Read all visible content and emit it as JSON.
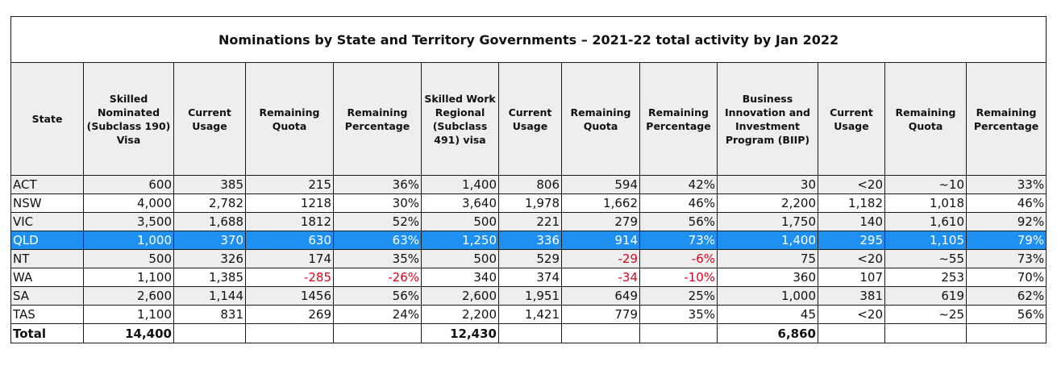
{
  "title": "Nominations by State and Territory Governments – 2021-22 total activity by Jan 2022",
  "headers": [
    "State",
    "Skilled Nominated (Subclass 190) Visa",
    "Current Usage",
    "Remaining Quota",
    "Remaining Percentage",
    "Skilled Work Regional (Subclass 491) visa",
    "Current Usage",
    "Remaining Quota",
    "Remaining Percentage",
    "Business Innovation and Investment Program (BIIP)",
    "Current Usage",
    "Remaining Quota",
    "Remaining Percentage"
  ],
  "rows": [
    [
      "ACT",
      "600",
      "385",
      "215",
      "36%",
      "1,400",
      "806",
      "594",
      "42%",
      "30",
      "<20",
      "~10",
      "33%"
    ],
    [
      "NSW",
      "4,000",
      "2,782",
      "1218",
      "30%",
      "3,640",
      "1,978",
      "1,662",
      "46%",
      "2,200",
      "1,182",
      "1,018",
      "46%"
    ],
    [
      "VIC",
      "3,500",
      "1,688",
      "1812",
      "52%",
      "500",
      "221",
      "279",
      "56%",
      "1,750",
      "140",
      "1,610",
      "92%"
    ],
    [
      "QLD",
      "1,000",
      "370",
      "630",
      "63%",
      "1,250",
      "336",
      "914",
      "73%",
      "1,400",
      "295",
      "1,105",
      "79%"
    ],
    [
      "NT",
      "500",
      "326",
      "174",
      "35%",
      "500",
      "529",
      "-29",
      "-6%",
      "75",
      "<20",
      "~55",
      "73%"
    ],
    [
      "WA",
      "1,100",
      "1,385",
      "-285",
      "-26%",
      "340",
      "374",
      "-34",
      "-10%",
      "360",
      "107",
      "253",
      "70%"
    ],
    [
      "SA",
      "2,600",
      "1,144",
      "1456",
      "56%",
      "2,600",
      "1,951",
      "649",
      "25%",
      "1,000",
      "381",
      "619",
      "62%"
    ],
    [
      "TAS",
      "1,100",
      "831",
      "269",
      "24%",
      "2,200",
      "1,421",
      "779",
      "35%",
      "45",
      "<20",
      "~25",
      "56%"
    ]
  ],
  "highlighted_row": "QLD",
  "highlight_color": "#1e90f2",
  "negative_color": "#e2001a",
  "total": [
    "Total",
    "14,400",
    "",
    "",
    "",
    "12,430",
    "",
    "",
    "",
    "6,860",
    "",
    "",
    ""
  ]
}
